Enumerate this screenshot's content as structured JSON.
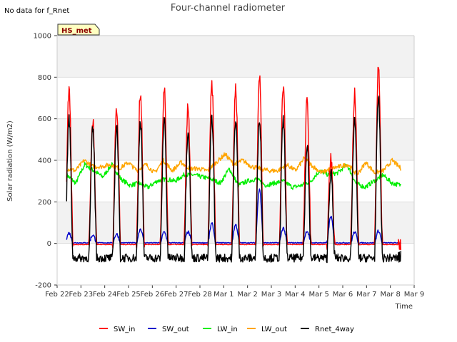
{
  "note": "No data for f_Rnet",
  "badge": "HS_met",
  "chart_data": {
    "type": "line",
    "title": "Four-channel radiometer",
    "xlabel": "Time",
    "ylabel": "Solar radiation (W/m2)",
    "xlim": [
      0,
      15
    ],
    "ylim": [
      -200,
      1000
    ],
    "yticks": [
      -200,
      0,
      200,
      400,
      600,
      800,
      1000
    ],
    "xticks": [
      0,
      1,
      2,
      3,
      4,
      5,
      6,
      7,
      8,
      9,
      10,
      11,
      12,
      13,
      14,
      15
    ],
    "xticklabels": [
      "Feb 22",
      "Feb 23",
      "Feb 24",
      "Feb 25",
      "Feb 26",
      "Feb 27",
      "Feb 28",
      "Mar 1",
      "Mar 2",
      "Mar 3",
      "Mar 4",
      "Mar 5",
      "Mar 6",
      "Mar 7",
      "Mar 8",
      "Mar 9"
    ],
    "grid": "horizontal bands",
    "legend_position": "bottom",
    "x_start": 0.4,
    "x_end": 14.45,
    "peak_days": [
      0.5,
      1.5,
      2.5,
      3.5,
      4.5,
      5.5,
      6.5,
      7.5,
      8.5,
      9.5,
      10.5,
      11.5,
      12.5,
      13.5
    ],
    "series": [
      {
        "name": "SW_in",
        "color": "#ff0000",
        "night": -5,
        "day_peaks": [
          725,
          595,
          645,
          730,
          735,
          655,
          760,
          750,
          805,
          770,
          680,
          410,
          725,
          845
        ]
      },
      {
        "name": "SW_out",
        "color": "#0000cc",
        "night": 3,
        "day_peaks": [
          50,
          40,
          45,
          70,
          55,
          55,
          95,
          90,
          265,
          75,
          60,
          130,
          55,
          60
        ]
      },
      {
        "name": "LW_in",
        "color": "#00ee00",
        "levels": [
          330,
          290,
          380,
          350,
          320,
          380,
          310,
          280,
          290,
          270,
          300,
          310,
          300,
          330,
          330,
          320,
          310,
          290,
          360,
          280,
          300,
          310,
          280,
          290,
          300,
          270,
          280,
          300,
          350,
          330,
          340,
          380,
          290,
          270,
          300,
          330,
          290,
          280
        ]
      },
      {
        "name": "LW_out",
        "color": "#ffa500",
        "levels": [
          360,
          350,
          400,
          370,
          370,
          380,
          360,
          390,
          350,
          380,
          340,
          400,
          350,
          390,
          360,
          360,
          350,
          390,
          430,
          380,
          400,
          370,
          360,
          350,
          350,
          380,
          350,
          410,
          370,
          340,
          360,
          370,
          380,
          330,
          390,
          340,
          350,
          400,
          360
        ]
      },
      {
        "name": "Rnet_4way",
        "color": "#000000",
        "night": -70,
        "day_peaks": [
          600,
          545,
          570,
          600,
          605,
          555,
          615,
          605,
          615,
          595,
          480,
          340,
          605,
          700
        ]
      }
    ]
  }
}
